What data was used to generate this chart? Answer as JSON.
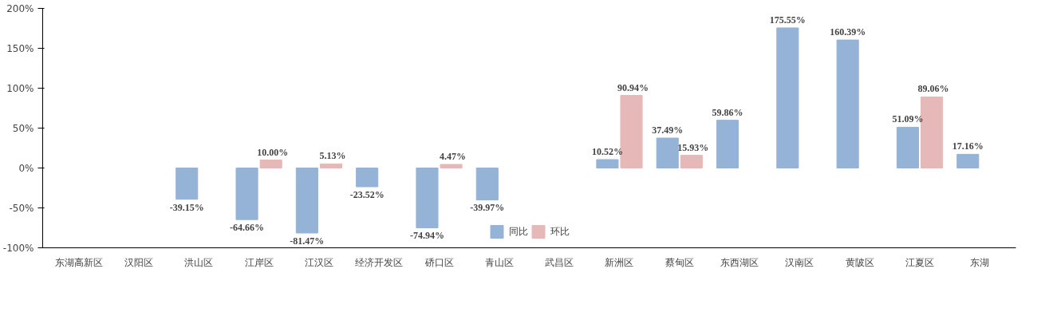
{
  "chart_data": {
    "type": "bar",
    "categories": [
      "东湖高新区",
      "汉阳区",
      "洪山区",
      "江岸区",
      "江汉区",
      "经济开发区",
      "硚口区",
      "青山区",
      "武昌区",
      "新洲区",
      "蔡甸区",
      "东西湖区",
      "汉南区",
      "黄陂区",
      "江夏区",
      "东湖"
    ],
    "series": [
      {
        "name": "同比",
        "color": "#95b3d7",
        "values": [
          null,
          null,
          -39.15,
          -64.66,
          -81.47,
          -23.52,
          -74.94,
          -39.97,
          null,
          10.52,
          37.49,
          59.86,
          175.55,
          160.39,
          51.09,
          17.16
        ],
        "value_labels": [
          null,
          null,
          "-39.15%",
          "-64.66%",
          "-81.47%",
          "-23.52%",
          "-74.94%",
          "-39.97%",
          null,
          "10.52%",
          "37.49%",
          "59.86%",
          "175.55%",
          "160.39%",
          "51.09%",
          "17.16%"
        ]
      },
      {
        "name": "环比",
        "color": "#e6b9b8",
        "values": [
          null,
          null,
          null,
          10.0,
          5.13,
          null,
          4.47,
          null,
          null,
          90.94,
          15.93,
          null,
          null,
          null,
          89.06,
          null
        ],
        "value_labels": [
          null,
          null,
          null,
          "10.00%",
          "5.13%",
          null,
          "4.47%",
          null,
          null,
          "90.94%",
          "15.93%",
          null,
          null,
          null,
          "89.06%",
          null
        ]
      }
    ],
    "ylim": [
      -100,
      200
    ],
    "yticks": [
      {
        "value": -100,
        "label": "-100%"
      },
      {
        "value": -50,
        "label": "-50%"
      },
      {
        "value": 0,
        "label": "0%"
      },
      {
        "value": 50,
        "label": "50%"
      },
      {
        "value": 100,
        "label": "100%"
      },
      {
        "value": 150,
        "label": "150%"
      },
      {
        "value": 200,
        "label": "200%"
      }
    ],
    "grid": false,
    "legend": "bottom"
  }
}
